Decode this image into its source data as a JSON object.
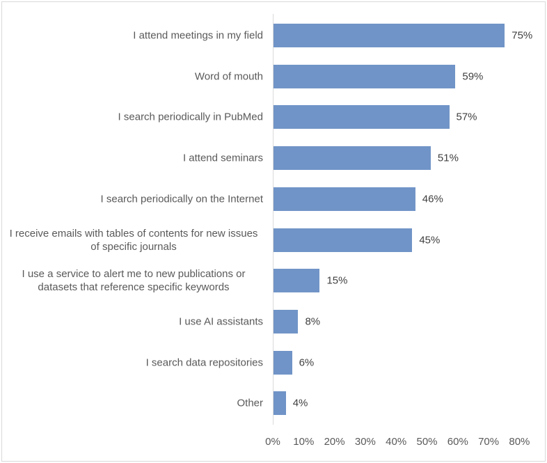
{
  "chart_data": {
    "type": "bar",
    "orientation": "horizontal",
    "title": "",
    "xlabel": "",
    "ylabel": "",
    "xlim": [
      0,
      80
    ],
    "grid": false,
    "legend": null,
    "categories": [
      "I attend meetings in my field",
      "Word of mouth",
      "I search periodically in PubMed",
      "I attend seminars",
      "I search periodically on the Internet",
      "I receive emails with tables of contents for new issues of specific journals",
      "I use a service to alert me to new publications or datasets that reference specific keywords",
      "I use AI assistants",
      "I search data repositories",
      "Other"
    ],
    "values": [
      75,
      59,
      57,
      51,
      46,
      45,
      15,
      8,
      6,
      4
    ],
    "value_labels": [
      "75%",
      "59%",
      "57%",
      "51%",
      "46%",
      "45%",
      "15%",
      "8%",
      "6%",
      "4%"
    ],
    "x_ticks": [
      "0%",
      "10%",
      "20%",
      "30%",
      "40%",
      "50%",
      "60%",
      "70%",
      "80%"
    ],
    "bar_color": "#7094c7"
  }
}
